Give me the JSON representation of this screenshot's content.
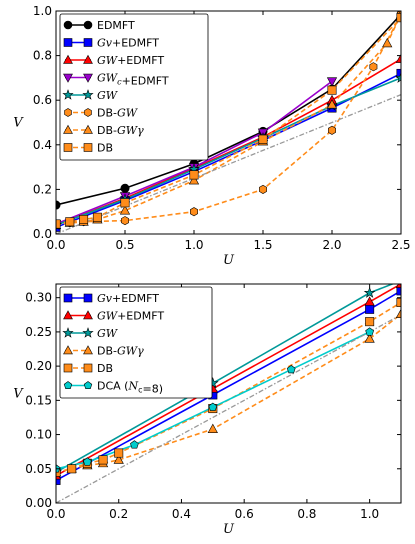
{
  "chart_data": [
    {
      "type": "line",
      "xlabel": "U",
      "ylabel": "V",
      "xlim": [
        0,
        2.5
      ],
      "ylim": [
        0,
        1.0
      ],
      "xticks": [
        "0.0",
        "0.5",
        "1.0",
        "1.5",
        "2.0",
        "2.5"
      ],
      "yticks": [
        "0.0",
        "0.2",
        "0.4",
        "0.6",
        "0.8",
        "1.0"
      ],
      "legend_position": "top-left",
      "series": [
        {
          "name": "EDMFT",
          "color": "#000000",
          "marker": "circle",
          "dash": "solid",
          "x": [
            0,
            0.5,
            1.0,
            1.5,
            2.0,
            2.5
          ],
          "y": [
            0.13,
            0.205,
            0.315,
            0.46,
            0.65,
            0.985
          ]
        },
        {
          "name": "Gv+EDMFT",
          "color": "#0000ff",
          "marker": "square",
          "dash": "solid",
          "x": [
            0,
            0.5,
            1.0,
            1.5,
            2.0,
            2.5
          ],
          "y": [
            0.03,
            0.15,
            0.28,
            0.42,
            0.565,
            0.72
          ]
        },
        {
          "name": "GW+EDMFT",
          "color": "#ff0000",
          "marker": "triangle-up",
          "dash": "solid",
          "x": [
            0,
            0.5,
            1.0,
            1.5,
            2.0,
            2.5
          ],
          "y": [
            0.04,
            0.16,
            0.295,
            0.435,
            0.6,
            0.785
          ]
        },
        {
          "name": "GWc+EDMFT",
          "color": "#9900cc",
          "marker": "triangle-down",
          "dash": "solid",
          "x": [
            0,
            0.5,
            1.0,
            1.5,
            2.0
          ],
          "y": [
            0.045,
            0.17,
            0.3,
            0.455,
            0.685
          ]
        },
        {
          "name": "GW",
          "color": "#009999",
          "marker": "star",
          "dash": "solid",
          "x": [
            0,
            0.5,
            1.0,
            1.5,
            2.0,
            2.5
          ],
          "y": [
            0.04,
            0.155,
            0.29,
            0.43,
            0.575,
            0.7
          ]
        },
        {
          "name": "DB-GW",
          "color": "#ff8c1a",
          "marker": "hexagon",
          "dash": "dashed",
          "x": [
            0,
            0.1,
            0.2,
            0.5,
            1.0,
            1.5,
            2.0,
            2.3,
            2.5
          ],
          "y": [
            0.045,
            0.05,
            0.055,
            0.06,
            0.1,
            0.2,
            0.465,
            0.75,
            0.985
          ]
        },
        {
          "name": "DB-GWγ",
          "color": "#ff8c1a",
          "marker": "triangle-up",
          "dash": "dashed",
          "x": [
            0,
            0.1,
            0.2,
            0.3,
            0.5,
            1.0,
            1.5,
            2.0,
            2.4,
            2.5
          ],
          "y": [
            0.04,
            0.05,
            0.055,
            0.065,
            0.105,
            0.24,
            0.415,
            0.58,
            0.855,
            0.985
          ]
        },
        {
          "name": "DB",
          "color": "#ff8c1a",
          "marker": "square",
          "dash": "dashed",
          "x": [
            0,
            0.1,
            0.2,
            0.3,
            0.5,
            1.0,
            1.5,
            2.0,
            2.5
          ],
          "y": [
            0.045,
            0.055,
            0.065,
            0.075,
            0.14,
            0.265,
            0.425,
            0.645,
            0.97
          ]
        },
        {
          "name": "",
          "color": "#999999",
          "marker": "none",
          "dash": "dashdot",
          "x": [
            0,
            2.5
          ],
          "y": [
            0,
            0.625
          ]
        }
      ]
    },
    {
      "type": "line",
      "xlabel": "U",
      "ylabel": "V",
      "xlim": [
        0,
        1.1
      ],
      "ylim": [
        0,
        0.32
      ],
      "xticks": [
        "0.0",
        "0.2",
        "0.4",
        "0.6",
        "0.8",
        "1.0"
      ],
      "yticks": [
        "0.00",
        "0.05",
        "0.10",
        "0.15",
        "0.20",
        "0.25",
        "0.30"
      ],
      "legend_position": "top-left",
      "series": [
        {
          "name": "Gv+EDMFT",
          "color": "#0000ff",
          "marker": "square",
          "dash": "solid",
          "x": [
            0,
            0.5,
            1.0,
            1.1
          ],
          "y": [
            0.033,
            0.158,
            0.283,
            0.31
          ]
        },
        {
          "name": "GW+EDMFT",
          "color": "#ff0000",
          "marker": "triangle-up",
          "dash": "solid",
          "x": [
            0,
            0.5,
            1.0,
            1.1
          ],
          "y": [
            0.04,
            0.167,
            0.294,
            0.32
          ]
        },
        {
          "name": "GW",
          "color": "#009999",
          "marker": "star",
          "dash": "solid",
          "x": [
            0,
            0.5,
            1.0,
            1.1
          ],
          "y": [
            0.045,
            0.175,
            0.307,
            0.325
          ]
        },
        {
          "name": "DB-GWγ",
          "color": "#ff8c1a",
          "marker": "triangle-up",
          "dash": "dashed",
          "x": [
            0,
            0.05,
            0.1,
            0.15,
            0.2,
            0.5,
            1.0,
            1.1
          ],
          "y": [
            0.045,
            0.05,
            0.055,
            0.058,
            0.063,
            0.108,
            0.24,
            0.276
          ]
        },
        {
          "name": "DB",
          "color": "#ff8c1a",
          "marker": "square",
          "dash": "dashed",
          "x": [
            0,
            0.05,
            0.1,
            0.15,
            0.2,
            0.5,
            1.0,
            1.1
          ],
          "y": [
            0.045,
            0.05,
            0.058,
            0.063,
            0.073,
            0.138,
            0.265,
            0.293
          ]
        },
        {
          "name": "DCA (Nc=8)",
          "color": "#00cccc",
          "marker": "pentagon",
          "dash": "solid",
          "x": [
            0,
            0.1,
            0.25,
            0.5,
            0.75,
            1.0
          ],
          "y": [
            0.05,
            0.06,
            0.085,
            0.14,
            0.195,
            0.25
          ]
        },
        {
          "name": "",
          "color": "#999999",
          "marker": "none",
          "dash": "dashdot",
          "x": [
            0,
            1.1
          ],
          "y": [
            0,
            0.275
          ]
        }
      ]
    }
  ]
}
